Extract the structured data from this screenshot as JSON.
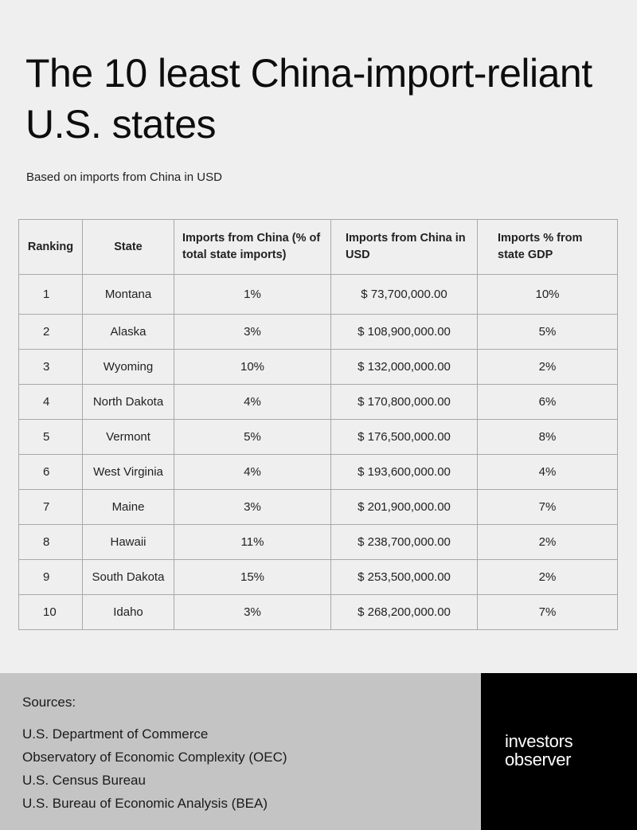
{
  "header": {
    "title": "The 10 least China-import-reliant U.S. states",
    "subtitle": "Based on imports from China in USD"
  },
  "chart_data": {
    "type": "table",
    "columns": [
      "Ranking",
      "State",
      "Imports from China (% of total state imports)",
      "Imports from China in USD",
      "Imports % from state GDP"
    ],
    "rows": [
      [
        "1",
        "Montana",
        "1%",
        "$ 73,700,000.00",
        "10%"
      ],
      [
        "2",
        "Alaska",
        "3%",
        "$ 108,900,000.00",
        "5%"
      ],
      [
        "3",
        "Wyoming",
        "10%",
        "$ 132,000,000.00",
        "2%"
      ],
      [
        "4",
        "North Dakota",
        "4%",
        "$ 170,800,000.00",
        "6%"
      ],
      [
        "5",
        "Vermont",
        "5%",
        "$ 176,500,000.00",
        "8%"
      ],
      [
        "6",
        "West Virginia",
        "4%",
        "$ 193,600,000.00",
        "4%"
      ],
      [
        "7",
        "Maine",
        "3%",
        "$ 201,900,000.00",
        "7%"
      ],
      [
        "8",
        "Hawaii",
        "11%",
        "$ 238,700,000.00",
        "2%"
      ],
      [
        "9",
        "South Dakota",
        "15%",
        "$ 253,500,000.00",
        "2%"
      ],
      [
        "10",
        "Idaho",
        "3%",
        "$ 268,200,000.00",
        "7%"
      ]
    ]
  },
  "footer": {
    "sources_title": "Sources:",
    "sources": [
      "U.S. Department of Commerce",
      "Observatory of Economic Complexity (OEC)",
      "U.S. Census Bureau",
      "U.S. Bureau of Economic Analysis (BEA)"
    ],
    "logo_line1": "investors",
    "logo_line2": "observer",
    "logo_bg": "#000000"
  }
}
